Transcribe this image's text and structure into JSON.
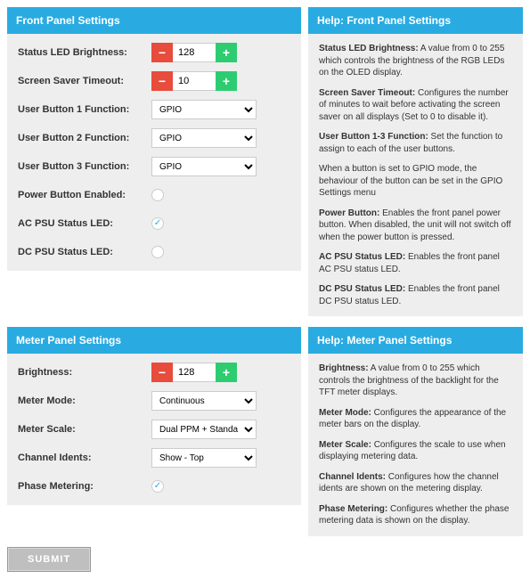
{
  "frontPanel": {
    "title": "Front Panel Settings",
    "fields": {
      "brightness": {
        "label": "Status LED Brightness:",
        "value": "128"
      },
      "timeout": {
        "label": "Screen Saver Timeout:",
        "value": "10"
      },
      "btn1": {
        "label": "User Button 1 Function:",
        "value": "GPIO"
      },
      "btn2": {
        "label": "User Button 2 Function:",
        "value": "GPIO"
      },
      "btn3": {
        "label": "User Button 3 Function:",
        "value": "GPIO"
      },
      "power": {
        "label": "Power Button Enabled:",
        "checked": false
      },
      "acpsu": {
        "label": "AC PSU Status LED:",
        "checked": true
      },
      "dcpsu": {
        "label": "DC PSU Status LED:",
        "checked": false
      }
    }
  },
  "frontHelp": {
    "title": "Help: Front Panel Settings",
    "items": [
      {
        "bold": "Status LED Brightness:",
        "text": " A value from 0 to 255 which controls the brightness of the RGB LEDs on the OLED display."
      },
      {
        "bold": "Screen Saver Timeout:",
        "text": " Configures the number of minutes to wait before activating the screen saver on all displays (Set to 0 to disable it)."
      },
      {
        "bold": "User Button 1-3 Function:",
        "text": " Set the function to assign to each of the user buttons."
      },
      {
        "bold": "",
        "text": "When a button is set to GPIO mode, the behaviour of the button can be set in the GPIO Settings menu"
      },
      {
        "bold": "Power Button:",
        "text": " Enables the front panel power button. When disabled, the unit will not switch off when the power button is pressed."
      },
      {
        "bold": "AC PSU Status LED:",
        "text": " Enables the front panel AC PSU status LED."
      },
      {
        "bold": "DC PSU Status LED:",
        "text": " Enables the front panel DC PSU status LED."
      }
    ]
  },
  "meterPanel": {
    "title": "Meter Panel Settings",
    "fields": {
      "brightness": {
        "label": "Brightness:",
        "value": "128"
      },
      "mode": {
        "label": "Meter Mode:",
        "value": "Continuous"
      },
      "scale": {
        "label": "Meter Scale:",
        "value": "Dual PPM + Standard VU"
      },
      "idents": {
        "label": "Channel Idents:",
        "value": "Show - Top"
      },
      "phase": {
        "label": "Phase Metering:",
        "checked": true
      }
    }
  },
  "meterHelp": {
    "title": "Help: Meter Panel Settings",
    "items": [
      {
        "bold": "Brightness:",
        "text": " A value from 0 to 255 which controls the brightness of the backlight for the TFT meter displays."
      },
      {
        "bold": "Meter Mode:",
        "text": " Configures the appearance of the meter bars on the display."
      },
      {
        "bold": "Meter Scale:",
        "text": " Configures the scale to use when displaying metering data."
      },
      {
        "bold": "Channel Idents:",
        "text": " Configures how the channel idents are shown on the metering display."
      },
      {
        "bold": "Phase Metering:",
        "text": " Configures whether the phase metering data is shown on the display."
      }
    ]
  },
  "submit": {
    "label": "SUBMIT"
  },
  "glyphs": {
    "minus": "−",
    "plus": "+",
    "check": "✓"
  },
  "colors": {
    "header": "#29abe2",
    "panel": "#eeeeee",
    "minus": "#e74c3c",
    "plus": "#2ecc71"
  }
}
